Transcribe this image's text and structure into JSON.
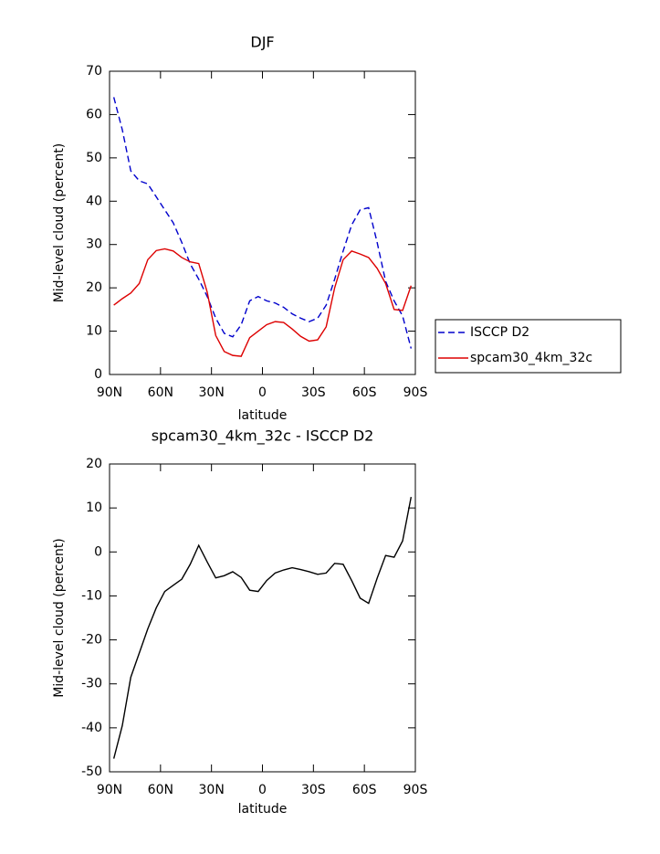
{
  "chart_data": [
    {
      "type": "line",
      "title": "DJF",
      "xlabel": "latitude",
      "ylabel": "Mid-level cloud (percent)",
      "x": [
        87.5,
        82.5,
        77.5,
        72.5,
        67.5,
        62.5,
        57.5,
        52.5,
        47.5,
        42.5,
        37.5,
        32.5,
        27.5,
        22.5,
        17.5,
        12.5,
        7.5,
        2.5,
        -2.5,
        -7.5,
        -12.5,
        -17.5,
        -22.5,
        -27.5,
        -32.5,
        -37.5,
        -42.5,
        -47.5,
        -52.5,
        -57.5,
        -62.5,
        -67.5,
        -72.5,
        -77.5,
        -82.5,
        -87.5
      ],
      "series": [
        {
          "name": "ISCCP D2",
          "color": "#0000cc",
          "dash": "dashed",
          "values": [
            64,
            56.5,
            47,
            44.7,
            44,
            41,
            38,
            35,
            30.5,
            25.5,
            22,
            18,
            13,
            9.5,
            8.7,
            11.5,
            17,
            18,
            17,
            16.5,
            15.5,
            14,
            13,
            12.2,
            13,
            16,
            22,
            28.5,
            34.5,
            38,
            38.5,
            30.5,
            21.5,
            17,
            13.5,
            6
          ]
        },
        {
          "name": "spcam30_4km_32c",
          "color": "#dd0000",
          "dash": "solid",
          "values": [
            16,
            17.5,
            18.8,
            21,
            26.5,
            28.6,
            29,
            28.5,
            27,
            26,
            25.6,
            19,
            9,
            5.3,
            4.4,
            4.2,
            8.5,
            10,
            11.5,
            12.2,
            12,
            10.5,
            8.8,
            7.7,
            8,
            11,
            20,
            26.5,
            28.5,
            27.8,
            27,
            24.5,
            21,
            15,
            14.8,
            20.5
          ]
        }
      ],
      "xlim": [
        90,
        -90
      ],
      "xticks": [
        {
          "value": 90,
          "label": "90N"
        },
        {
          "value": 60,
          "label": "60N"
        },
        {
          "value": 30,
          "label": "30N"
        },
        0,
        {
          "value": -30,
          "label": "30S"
        },
        {
          "value": -60,
          "label": "60S"
        },
        {
          "value": -90,
          "label": "90S"
        }
      ],
      "ylim": [
        0,
        70
      ],
      "yticks": [
        0,
        10,
        20,
        30,
        40,
        50,
        60,
        70
      ],
      "legend": "right"
    },
    {
      "type": "line",
      "title": "spcam30_4km_32c - ISCCP D2",
      "xlabel": "latitude",
      "ylabel": "Mid-level cloud (percent)",
      "x": [
        87.5,
        82.5,
        77.5,
        72.5,
        67.5,
        62.5,
        57.5,
        52.5,
        47.5,
        42.5,
        37.5,
        32.5,
        27.5,
        22.5,
        17.5,
        12.5,
        7.5,
        2.5,
        -2.5,
        -7.5,
        -12.5,
        -17.5,
        -22.5,
        -27.5,
        -32.5,
        -37.5,
        -42.5,
        -47.5,
        -52.5,
        -57.5,
        -62.5,
        -67.5,
        -72.5,
        -77.5,
        -82.5,
        -87.5
      ],
      "series": [
        {
          "color": "#000000",
          "dash": "solid",
          "values": [
            -47,
            -39.5,
            -28.5,
            -23,
            -17.5,
            -12.7,
            -9,
            -7.6,
            -6.2,
            -2.8,
            1.5,
            -2.3,
            -5.9,
            -5.4,
            -4.5,
            -5.8,
            -8.7,
            -9,
            -6.5,
            -4.8,
            -4.1,
            -3.6,
            -4,
            -4.5,
            -5.1,
            -4.8,
            -2.6,
            -2.8,
            -6.5,
            -10.5,
            -11.7,
            -6,
            -0.8,
            -1.2,
            2.5,
            12.5
          ]
        }
      ],
      "xlim": [
        90,
        -90
      ],
      "xticks": [
        {
          "value": 90,
          "label": "90N"
        },
        {
          "value": 60,
          "label": "60N"
        },
        {
          "value": 30,
          "label": "30N"
        },
        0,
        {
          "value": -30,
          "label": "30S"
        },
        {
          "value": -60,
          "label": "60S"
        },
        {
          "value": -90,
          "label": "90S"
        }
      ],
      "ylim": [
        -50,
        20
      ],
      "yticks": [
        -50,
        -40,
        -30,
        -20,
        -10,
        0,
        10,
        20
      ]
    }
  ]
}
